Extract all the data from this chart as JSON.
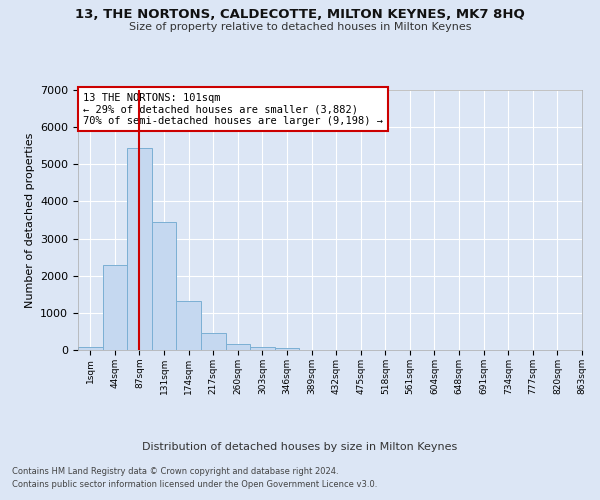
{
  "title": "13, THE NORTONS, CALDECOTTE, MILTON KEYNES, MK7 8HQ",
  "subtitle": "Size of property relative to detached houses in Milton Keynes",
  "xlabel": "Distribution of detached houses by size in Milton Keynes",
  "ylabel": "Number of detached properties",
  "bar_values": [
    75,
    2300,
    5450,
    3450,
    1320,
    470,
    155,
    80,
    45,
    0,
    0,
    0,
    0,
    0,
    0,
    0,
    0,
    0,
    0,
    0
  ],
  "bar_color": "#c5d8f0",
  "bar_edgecolor": "#7bafd4",
  "tick_labels": [
    "1sqm",
    "44sqm",
    "87sqm",
    "131sqm",
    "174sqm",
    "217sqm",
    "260sqm",
    "303sqm",
    "346sqm",
    "389sqm",
    "432sqm",
    "475sqm",
    "518sqm",
    "561sqm",
    "604sqm",
    "648sqm",
    "691sqm",
    "734sqm",
    "777sqm",
    "820sqm",
    "863sqm"
  ],
  "vline_x": 2,
  "vline_color": "#cc0000",
  "annotation_text": "13 THE NORTONS: 101sqm\n← 29% of detached houses are smaller (3,882)\n70% of semi-detached houses are larger (9,198) →",
  "annotation_box_color": "#ffffff",
  "annotation_box_edgecolor": "#cc0000",
  "ylim": [
    0,
    7000
  ],
  "yticks": [
    0,
    1000,
    2000,
    3000,
    4000,
    5000,
    6000,
    7000
  ],
  "footer_line1": "Contains HM Land Registry data © Crown copyright and database right 2024.",
  "footer_line2": "Contains public sector information licensed under the Open Government Licence v3.0.",
  "background_color": "#dce6f5",
  "plot_background": "#dce6f5",
  "grid_color": "#ffffff",
  "figsize": [
    6.0,
    5.0
  ],
  "dpi": 100
}
